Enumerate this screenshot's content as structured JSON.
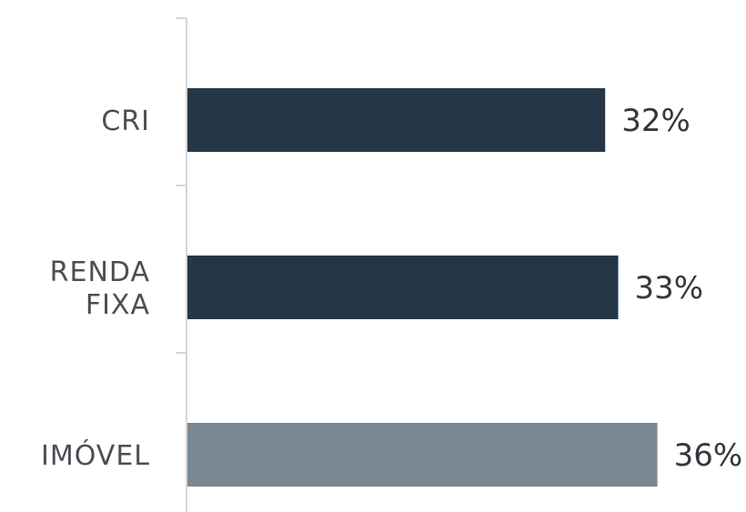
{
  "chart_data": {
    "type": "bar",
    "orientation": "horizontal",
    "categories": [
      [
        "CRI"
      ],
      [
        "RENDA",
        "FIXA"
      ],
      [
        "IMÓVEL"
      ]
    ],
    "values": [
      32,
      33,
      36
    ],
    "value_labels": [
      "32%",
      "33%",
      "36%"
    ],
    "colors": [
      "#253746",
      "#253746",
      "#798892"
    ],
    "axis_color": "#d6d6d6",
    "title": "",
    "xlabel": "",
    "ylabel": "",
    "grid": false,
    "legend": "none"
  }
}
